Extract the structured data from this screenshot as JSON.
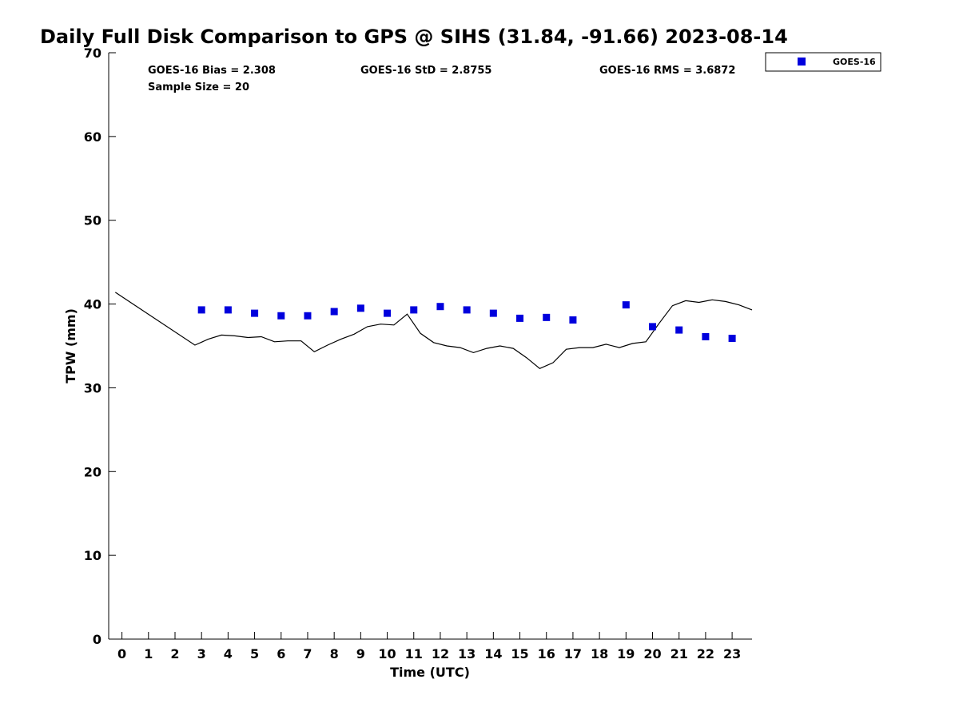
{
  "chart_data": {
    "type": "line+scatter",
    "title": "Daily Full Disk Comparison to GPS @ SIHS (31.84, -91.66) 2023-08-14",
    "xlabel": "Time (UTC)",
    "ylabel": "TPW (mm)",
    "xlim": [
      -0.5,
      23.75
    ],
    "ylim": [
      0,
      70
    ],
    "xticks": [
      0,
      1,
      2,
      3,
      4,
      5,
      6,
      7,
      8,
      9,
      10,
      11,
      12,
      13,
      14,
      15,
      16,
      17,
      18,
      19,
      20,
      21,
      22,
      23
    ],
    "yticks": [
      0,
      10,
      20,
      30,
      40,
      50,
      60,
      70
    ],
    "grid": false,
    "legend_position": "top-right",
    "stats": {
      "bias": "GOES-16 Bias = 2.308",
      "std": "GOES-16 StD = 2.8755",
      "rms": "GOES-16 RMS = 3.6872",
      "sample_size": "Sample Size = 20"
    },
    "series": [
      {
        "name": "GOES-16",
        "kind": "scatter",
        "marker": "square",
        "color": "#0000dd",
        "points": [
          [
            3,
            39.3
          ],
          [
            4,
            39.3
          ],
          [
            5,
            38.9
          ],
          [
            6,
            38.6
          ],
          [
            7,
            38.6
          ],
          [
            8,
            39.1
          ],
          [
            9,
            39.5
          ],
          [
            10,
            38.9
          ],
          [
            11,
            39.3
          ],
          [
            12,
            39.7
          ],
          [
            13,
            39.3
          ],
          [
            14,
            38.9
          ],
          [
            15,
            38.3
          ],
          [
            16,
            38.4
          ],
          [
            17,
            38.1
          ],
          [
            19,
            39.9
          ],
          [
            20,
            37.3
          ],
          [
            21,
            36.9
          ],
          [
            22,
            36.1
          ],
          [
            23,
            35.9
          ]
        ]
      },
      {
        "kind": "line",
        "color": "#000000",
        "points": [
          [
            -0.25,
            41.4
          ],
          [
            2.75,
            35.1
          ],
          [
            3.25,
            35.8
          ],
          [
            3.75,
            36.3
          ],
          [
            4.25,
            36.2
          ],
          [
            4.75,
            36.0
          ],
          [
            5.25,
            36.1
          ],
          [
            5.75,
            35.5
          ],
          [
            6.25,
            35.6
          ],
          [
            6.75,
            35.6
          ],
          [
            7.25,
            34.3
          ],
          [
            7.75,
            35.1
          ],
          [
            8.25,
            35.8
          ],
          [
            8.75,
            36.4
          ],
          [
            9.25,
            37.3
          ],
          [
            9.75,
            37.6
          ],
          [
            10.25,
            37.5
          ],
          [
            10.75,
            38.8
          ],
          [
            11.25,
            36.5
          ],
          [
            11.75,
            35.4
          ],
          [
            12.25,
            35.0
          ],
          [
            12.75,
            34.8
          ],
          [
            13.25,
            34.2
          ],
          [
            13.75,
            34.7
          ],
          [
            14.25,
            35.0
          ],
          [
            14.75,
            34.7
          ],
          [
            15.25,
            33.6
          ],
          [
            15.75,
            32.3
          ],
          [
            16.25,
            33.0
          ],
          [
            16.75,
            34.6
          ],
          [
            17.25,
            34.8
          ],
          [
            17.75,
            34.8
          ],
          [
            18.25,
            35.2
          ],
          [
            18.75,
            34.8
          ],
          [
            19.25,
            35.3
          ],
          [
            19.75,
            35.5
          ],
          [
            20.25,
            37.7
          ],
          [
            20.75,
            39.8
          ],
          [
            21.25,
            40.4
          ],
          [
            21.75,
            40.2
          ],
          [
            22.25,
            40.5
          ],
          [
            22.75,
            40.3
          ],
          [
            23.25,
            39.9
          ],
          [
            23.75,
            39.3
          ]
        ]
      }
    ]
  }
}
